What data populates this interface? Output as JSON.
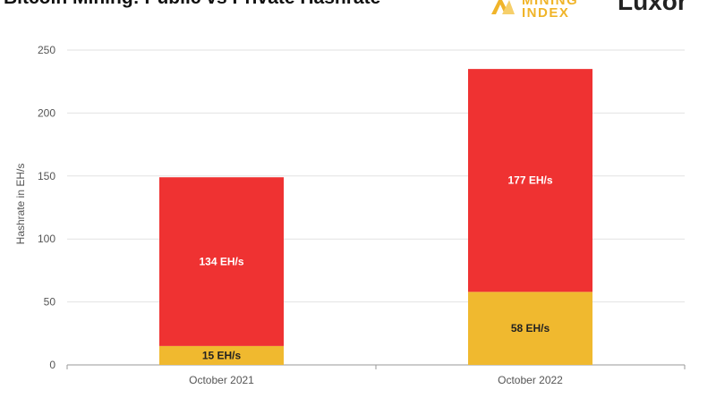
{
  "header": {
    "title": "Bitcoin Mining: Public vs Private Hashrate",
    "logo_index_top": "MINING",
    "logo_index_bottom": "INDEX",
    "logo_luxor": "Luxor"
  },
  "colors": {
    "private": "#ef3232",
    "public": "#f0b92f",
    "grid": "#e2e2e2",
    "axis": "#999999"
  },
  "chart_data": {
    "type": "bar",
    "stacked": true,
    "categories": [
      "October 2021",
      "October 2022"
    ],
    "series": [
      {
        "key": "public",
        "values": [
          15,
          58
        ],
        "labels": [
          "15 EH/s",
          "58 EH/s"
        ]
      },
      {
        "key": "private",
        "values": [
          134,
          177
        ],
        "labels": [
          "134 EH/s",
          "177 EH/s"
        ]
      }
    ],
    "title": "Bitcoin Mining: Public vs Private Hashrate",
    "xlabel": "",
    "ylabel": "Hashrate in EH/s",
    "ylim": [
      0,
      250
    ],
    "yticks": [
      0,
      50,
      100,
      150,
      200,
      250
    ],
    "grid": true
  }
}
